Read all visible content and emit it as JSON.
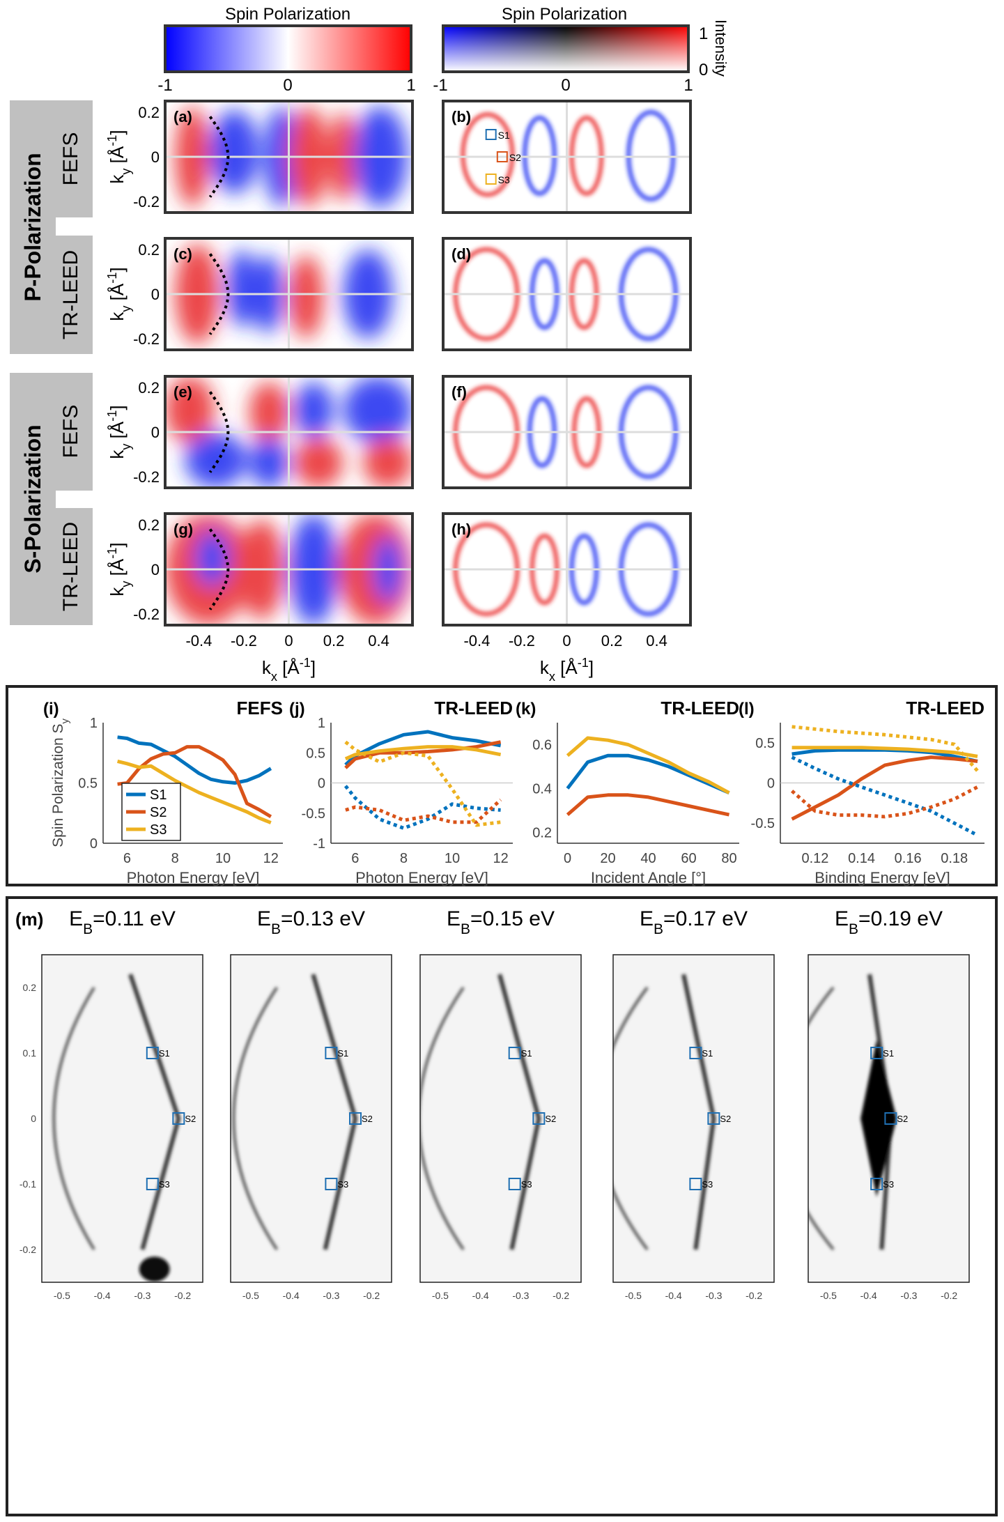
{
  "colorbars": {
    "left": {
      "title": "Spin Polarization",
      "ticks": [
        "-1",
        "0",
        "1"
      ]
    },
    "right": {
      "title": "Spin Polarization",
      "ticks": [
        "-1",
        "0",
        "1"
      ],
      "intensity_label": "Intensity",
      "intensity_ticks": [
        "1",
        "0"
      ]
    }
  },
  "row_groups": [
    "P-Polarization",
    "S-Polarization"
  ],
  "row_methods": [
    "FEFS",
    "TR-LEED",
    "FEFS",
    "TR-LEED"
  ],
  "panel_letters": [
    "(a)",
    "(b)",
    "(c)",
    "(d)",
    "(e)",
    "(f)",
    "(g)",
    "(h)"
  ],
  "map_axes": {
    "ylabel": "k_y [Å^-1]",
    "xlabel": "k_x [Å^-1]",
    "yticks": [
      "0.2",
      "0",
      "-0.2"
    ],
    "xticks": [
      "-0.4",
      "-0.2",
      "0",
      "0.2",
      "0.4"
    ],
    "xlim": [
      -0.55,
      0.55
    ],
    "ylim": [
      -0.25,
      0.25
    ]
  },
  "sample_points": [
    {
      "label": "S1",
      "kx": -0.3,
      "ky": 0.1,
      "color": "#1f6fb2"
    },
    {
      "label": "S2",
      "kx": -0.25,
      "ky": 0.0,
      "color": "#d95319"
    },
    {
      "label": "S3",
      "kx": -0.3,
      "ky": -0.1,
      "color": "#edb120"
    }
  ],
  "colors": {
    "s1": "#0072BD",
    "s2": "#D95319",
    "s3": "#EDB120",
    "pos": "#e8262a",
    "neg": "#1d2bf0"
  },
  "chart_data": [
    {
      "type": "line",
      "panel": "(i)",
      "method": "FEFS",
      "title": "FEFS",
      "xlabel": "Photon Energy [eV]",
      "ylabel": "Spin Polarization S_y",
      "xlim": [
        5,
        12.5
      ],
      "ylim": [
        0,
        1
      ],
      "xticks": [
        "6",
        "8",
        "10",
        "12"
      ],
      "yticks": [
        "1",
        "0.5",
        "0"
      ],
      "legend": [
        "S1",
        "S2",
        "S3"
      ],
      "series": [
        {
          "name": "S1",
          "style": "solid",
          "x": [
            5.6,
            6,
            6.5,
            7,
            7.5,
            8,
            8.5,
            9,
            9.5,
            10,
            10.5,
            11,
            11.5,
            12
          ],
          "y": [
            0.88,
            0.87,
            0.83,
            0.82,
            0.77,
            0.72,
            0.65,
            0.58,
            0.53,
            0.51,
            0.5,
            0.52,
            0.56,
            0.62
          ]
        },
        {
          "name": "S2",
          "style": "solid",
          "x": [
            5.6,
            6,
            6.5,
            7,
            7.5,
            8,
            8.5,
            9,
            9.5,
            10,
            10.5,
            11,
            11.5,
            12
          ],
          "y": [
            0.49,
            0.5,
            0.62,
            0.7,
            0.74,
            0.75,
            0.8,
            0.8,
            0.75,
            0.69,
            0.57,
            0.33,
            0.28,
            0.22
          ]
        },
        {
          "name": "S3",
          "style": "solid",
          "x": [
            5.6,
            6,
            6.5,
            7,
            7.5,
            8,
            8.5,
            9,
            9.5,
            10,
            10.5,
            11,
            11.5,
            12
          ],
          "y": [
            0.68,
            0.66,
            0.63,
            0.64,
            0.58,
            0.52,
            0.47,
            0.42,
            0.38,
            0.34,
            0.3,
            0.26,
            0.21,
            0.17
          ]
        }
      ]
    },
    {
      "type": "line",
      "panel": "(j)",
      "method": "TR-LEED",
      "title": "TR-LEED",
      "xlabel": "Photon Energy [eV]",
      "ylabel": "",
      "xlim": [
        5,
        12.5
      ],
      "ylim": [
        -1,
        1
      ],
      "xticks": [
        "6",
        "8",
        "10",
        "12"
      ],
      "yticks": [
        "1",
        "0.5",
        "0",
        "-0.5",
        "-1"
      ],
      "series": [
        {
          "name": "S1 y",
          "style": "solid",
          "color": "s1",
          "x": [
            5.6,
            6,
            7,
            8,
            9,
            10,
            11,
            12
          ],
          "y": [
            0.3,
            0.45,
            0.65,
            0.8,
            0.85,
            0.75,
            0.7,
            0.62
          ]
        },
        {
          "name": "S2 y",
          "style": "solid",
          "color": "s2",
          "x": [
            5.6,
            6,
            7,
            8,
            9,
            10,
            11,
            12
          ],
          "y": [
            0.25,
            0.4,
            0.5,
            0.5,
            0.52,
            0.55,
            0.6,
            0.68
          ]
        },
        {
          "name": "S3 y",
          "style": "solid",
          "color": "s3",
          "x": [
            5.6,
            6,
            7,
            8,
            9,
            10,
            11,
            12
          ],
          "y": [
            0.4,
            0.47,
            0.53,
            0.57,
            0.6,
            0.6,
            0.55,
            0.47
          ]
        },
        {
          "name": "S1 x",
          "style": "dotted",
          "color": "s1",
          "x": [
            5.6,
            6,
            7,
            8,
            9,
            10,
            11,
            12
          ],
          "y": [
            -0.05,
            -0.25,
            -0.6,
            -0.75,
            -0.6,
            -0.35,
            -0.42,
            -0.45
          ]
        },
        {
          "name": "S2 x",
          "style": "dotted",
          "color": "s2",
          "x": [
            5.6,
            6,
            7,
            8,
            9,
            10,
            11,
            12
          ],
          "y": [
            -0.45,
            -0.4,
            -0.45,
            -0.62,
            -0.55,
            -0.65,
            -0.65,
            -0.28
          ]
        },
        {
          "name": "S3 x",
          "style": "dotted",
          "color": "s3",
          "x": [
            5.6,
            6,
            7,
            8,
            9,
            10,
            11,
            12
          ],
          "y": [
            0.68,
            0.55,
            0.35,
            0.5,
            0.45,
            -0.1,
            -0.7,
            -0.65
          ]
        }
      ]
    },
    {
      "type": "line",
      "panel": "(k)",
      "method": "TR-LEED",
      "title": "TR-LEED",
      "xlabel": "Incident Angle [°]",
      "ylabel": "",
      "xlim": [
        -5,
        85
      ],
      "ylim": [
        0.15,
        0.7
      ],
      "xticks": [
        "0",
        "20",
        "40",
        "60",
        "80"
      ],
      "yticks": [
        "0.6",
        "0.4",
        "0.2"
      ],
      "series": [
        {
          "name": "S1",
          "style": "solid",
          "color": "s1",
          "x": [
            0,
            10,
            20,
            30,
            40,
            50,
            60,
            70,
            80
          ],
          "y": [
            0.4,
            0.52,
            0.55,
            0.55,
            0.53,
            0.5,
            0.46,
            0.42,
            0.38
          ]
        },
        {
          "name": "S2",
          "style": "solid",
          "color": "s2",
          "x": [
            0,
            10,
            20,
            30,
            40,
            50,
            60,
            70,
            80
          ],
          "y": [
            0.28,
            0.36,
            0.37,
            0.37,
            0.36,
            0.34,
            0.32,
            0.3,
            0.28
          ]
        },
        {
          "name": "S3",
          "style": "solid",
          "color": "s3",
          "x": [
            0,
            10,
            20,
            30,
            40,
            50,
            60,
            70,
            80
          ],
          "y": [
            0.55,
            0.63,
            0.62,
            0.6,
            0.56,
            0.52,
            0.47,
            0.43,
            0.38
          ]
        }
      ]
    },
    {
      "type": "line",
      "panel": "(l)",
      "method": "TR-LEED",
      "title": "TR-LEED",
      "xlabel": "Binding Energy [eV]",
      "ylabel": "",
      "xlim": [
        0.105,
        0.193
      ],
      "ylim": [
        -0.75,
        0.75
      ],
      "xticks": [
        "0.12",
        "0.14",
        "0.16",
        "0.18"
      ],
      "yticks": [
        "0.5",
        "0",
        "-0.5"
      ],
      "series": [
        {
          "name": "S1 y",
          "style": "solid",
          "color": "s1",
          "x": [
            0.11,
            0.12,
            0.13,
            0.14,
            0.15,
            0.16,
            0.17,
            0.18,
            0.19
          ],
          "y": [
            0.36,
            0.4,
            0.41,
            0.41,
            0.41,
            0.4,
            0.38,
            0.33,
            0.27
          ]
        },
        {
          "name": "S2 y",
          "style": "solid",
          "color": "s2",
          "x": [
            0.11,
            0.12,
            0.13,
            0.14,
            0.15,
            0.16,
            0.17,
            0.18,
            0.19
          ],
          "y": [
            -0.45,
            -0.3,
            -0.15,
            0.05,
            0.22,
            0.28,
            0.32,
            0.3,
            0.27
          ]
        },
        {
          "name": "S3 y",
          "style": "solid",
          "color": "s3",
          "x": [
            0.11,
            0.12,
            0.13,
            0.14,
            0.15,
            0.16,
            0.17,
            0.18,
            0.19
          ],
          "y": [
            0.44,
            0.44,
            0.44,
            0.44,
            0.43,
            0.42,
            0.4,
            0.38,
            0.33
          ]
        },
        {
          "name": "S1 x",
          "style": "dotted",
          "color": "s1",
          "x": [
            0.11,
            0.12,
            0.13,
            0.14,
            0.15,
            0.16,
            0.17,
            0.18,
            0.19
          ],
          "y": [
            0.32,
            0.18,
            0.05,
            -0.05,
            -0.15,
            -0.25,
            -0.35,
            -0.5,
            -0.65
          ]
        },
        {
          "name": "S2 x",
          "style": "dotted",
          "color": "s2",
          "x": [
            0.11,
            0.12,
            0.13,
            0.14,
            0.15,
            0.16,
            0.17,
            0.18,
            0.19
          ],
          "y": [
            -0.1,
            -0.35,
            -0.4,
            -0.4,
            -0.42,
            -0.38,
            -0.3,
            -0.2,
            -0.05
          ]
        },
        {
          "name": "S3 x",
          "style": "dotted",
          "color": "s3",
          "x": [
            0.11,
            0.12,
            0.13,
            0.14,
            0.15,
            0.16,
            0.17,
            0.18,
            0.19
          ],
          "y": [
            0.7,
            0.67,
            0.64,
            0.62,
            0.6,
            0.57,
            0.54,
            0.48,
            0.15
          ]
        }
      ]
    }
  ],
  "panel_m": {
    "letter": "(m)",
    "titles": [
      "E_B=0.11 eV",
      "E_B=0.13 eV",
      "E_B=0.15 eV",
      "E_B=0.17 eV",
      "E_B=0.19 eV"
    ],
    "yticks": [
      "0.2",
      "0.1",
      "0",
      "-0.1",
      "-0.2"
    ],
    "xticks": [
      "-0.5",
      "-0.4",
      "-0.3",
      "-0.2"
    ],
    "xlim": [
      -0.55,
      -0.15
    ],
    "ylim": [
      -0.25,
      0.25
    ],
    "markers": [
      "S1",
      "S2",
      "S3"
    ],
    "marker_kx": [
      [
        -0.275,
        -0.21,
        -0.275
      ],
      [
        -0.3,
        -0.24,
        -0.3
      ],
      [
        -0.315,
        -0.255,
        -0.315
      ],
      [
        -0.345,
        -0.3,
        -0.345
      ],
      [
        -0.38,
        -0.345,
        -0.38
      ]
    ],
    "marker_ky": [
      0.1,
      0.0,
      -0.1
    ]
  }
}
